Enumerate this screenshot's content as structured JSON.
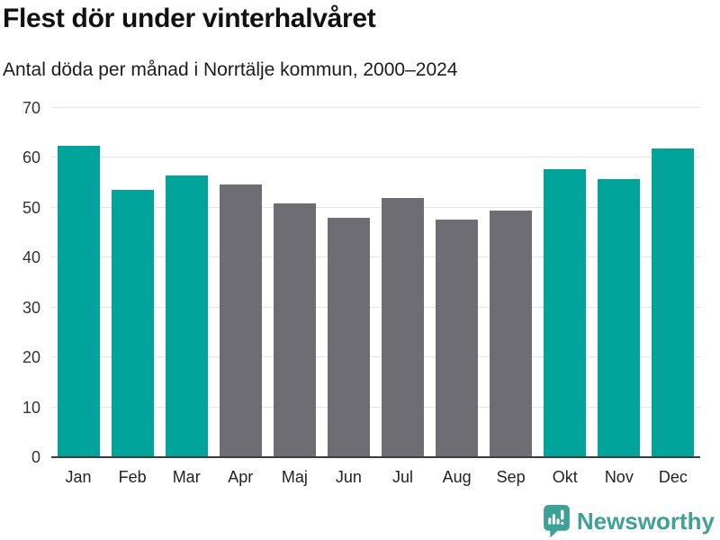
{
  "header": {
    "title": "Flest dör under vinterhalvåret",
    "subtitle": "Antal döda per månad i Norrtälje kommun, 2000–2024"
  },
  "chart_data": {
    "type": "bar",
    "title": "Flest dör under vinterhalvåret",
    "subtitle": "Antal döda per månad i Norrtälje kommun, 2000–2024",
    "categories": [
      "Jan",
      "Feb",
      "Mar",
      "Apr",
      "Maj",
      "Jun",
      "Jul",
      "Aug",
      "Sep",
      "Okt",
      "Nov",
      "Dec"
    ],
    "values": [
      62.5,
      53.5,
      56.4,
      54.6,
      50.8,
      48.0,
      52.0,
      47.7,
      49.4,
      57.8,
      55.8,
      61.8
    ],
    "seasons": [
      "winter",
      "winter",
      "winter",
      "summer",
      "summer",
      "summer",
      "summer",
      "summer",
      "summer",
      "winter",
      "winter",
      "winter"
    ],
    "xlabel": "",
    "ylabel": "",
    "ylim": [
      0,
      70
    ],
    "yticks": [
      0,
      10,
      20,
      30,
      40,
      50,
      60,
      70
    ],
    "grid": true,
    "legend": false
  },
  "colors": {
    "winter_bar": "#00a49b",
    "summer_bar": "#6d6d73",
    "gridline": "#e6e6e6",
    "axis_line": "#3c3c3c",
    "title_text": "#111111",
    "axis_text": "#333333",
    "brand_teal": "#3fa096"
  },
  "footer": {
    "brand": "Newsworthy",
    "logo_icon": "bar-chart-speech-bubble-icon"
  }
}
